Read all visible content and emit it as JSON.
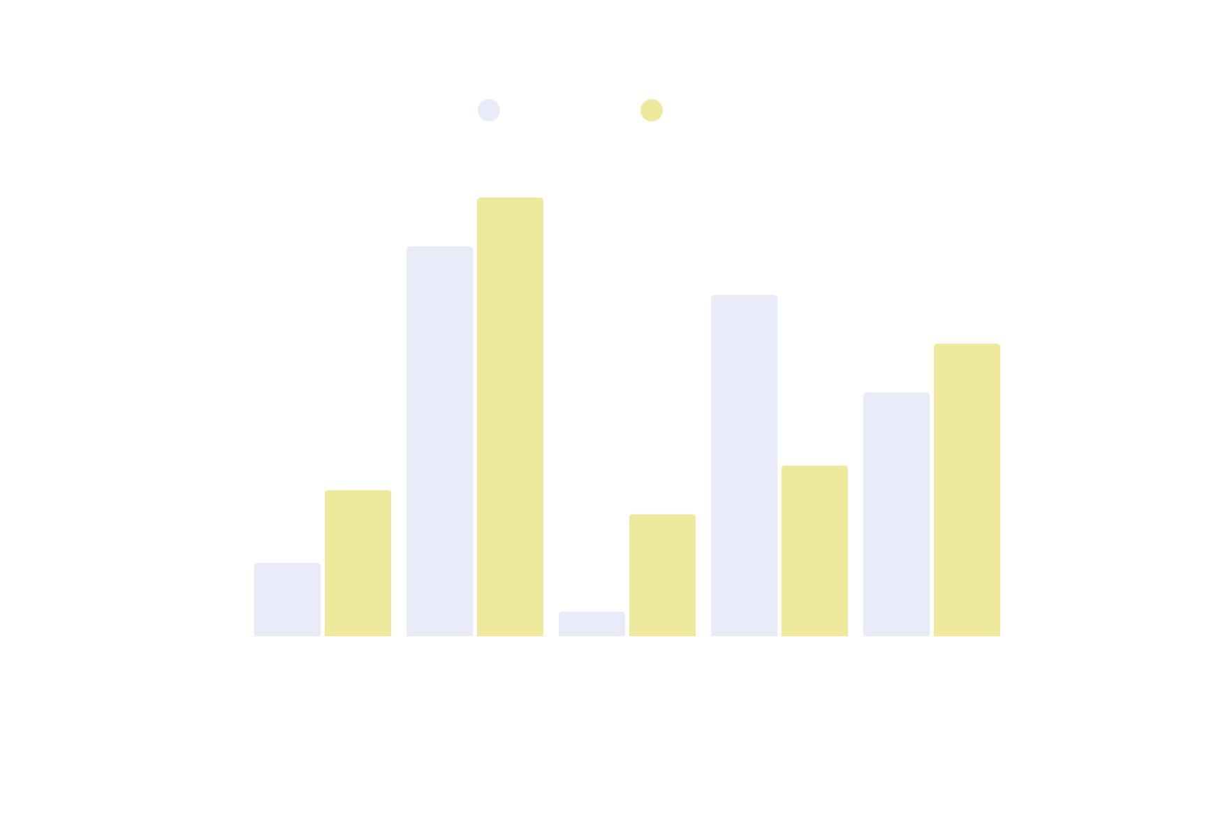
{
  "chart_data": {
    "type": "bar",
    "title": "",
    "xlabel": "",
    "ylabel": "",
    "categories": [
      "",
      "",
      "",
      "",
      ""
    ],
    "ylim": [
      0,
      100
    ],
    "grid": false,
    "legend_position": "top-center",
    "series": [
      {
        "color": "#e9ecf8",
        "values": [
          16.7,
          88.9,
          5.6,
          77.8,
          55.6
        ]
      },
      {
        "color": "#efe99d",
        "values": [
          33.3,
          100.0,
          27.8,
          38.9,
          66.7
        ]
      }
    ]
  }
}
